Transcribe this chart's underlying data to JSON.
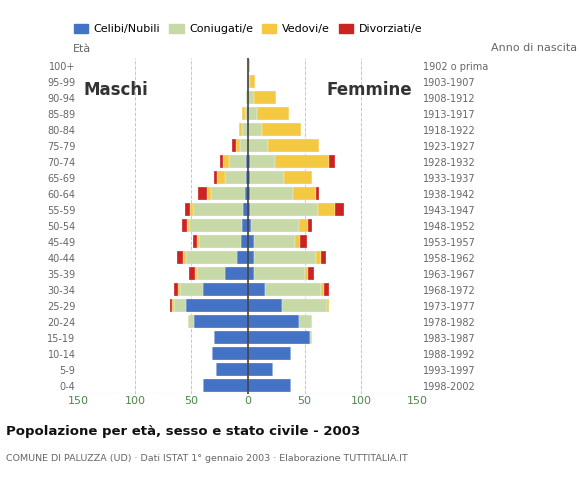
{
  "age_groups": [
    "0-4",
    "5-9",
    "10-14",
    "15-19",
    "20-24",
    "25-29",
    "30-34",
    "35-39",
    "40-44",
    "45-49",
    "50-54",
    "55-59",
    "60-64",
    "65-69",
    "70-74",
    "75-79",
    "80-84",
    "85-89",
    "90-94",
    "95-99",
    "100+"
  ],
  "birth_years": [
    "1998-2002",
    "1993-1997",
    "1988-1992",
    "1983-1987",
    "1978-1982",
    "1973-1977",
    "1968-1972",
    "1963-1967",
    "1958-1962",
    "1953-1957",
    "1948-1952",
    "1943-1947",
    "1938-1942",
    "1933-1937",
    "1928-1932",
    "1923-1927",
    "1918-1922",
    "1913-1917",
    "1908-1912",
    "1903-1907",
    "1902 o prima"
  ],
  "male_celibi": [
    40,
    28,
    32,
    30,
    48,
    55,
    40,
    20,
    10,
    6,
    5,
    4,
    3,
    2,
    2,
    0,
    0,
    0,
    0,
    0,
    0
  ],
  "male_coniugati": [
    0,
    0,
    0,
    0,
    5,
    10,
    20,
    25,
    45,
    37,
    47,
    45,
    30,
    18,
    15,
    7,
    5,
    3,
    2,
    0,
    0
  ],
  "male_vedovi": [
    0,
    0,
    0,
    0,
    0,
    2,
    2,
    2,
    2,
    2,
    2,
    2,
    3,
    7,
    5,
    4,
    3,
    2,
    0,
    0,
    0
  ],
  "male_divorziati": [
    0,
    0,
    0,
    0,
    0,
    2,
    3,
    5,
    6,
    4,
    4,
    5,
    8,
    3,
    3,
    3,
    0,
    0,
    0,
    0,
    0
  ],
  "female_nubili": [
    38,
    22,
    38,
    55,
    45,
    30,
    15,
    5,
    5,
    5,
    3,
    2,
    2,
    2,
    2,
    0,
    0,
    0,
    0,
    0,
    0
  ],
  "female_coniugate": [
    0,
    0,
    0,
    2,
    12,
    40,
    50,
    45,
    55,
    37,
    42,
    60,
    38,
    30,
    22,
    18,
    12,
    8,
    5,
    2,
    0
  ],
  "female_vedove": [
    0,
    0,
    0,
    0,
    0,
    2,
    2,
    3,
    5,
    4,
    8,
    15,
    20,
    25,
    48,
    45,
    35,
    28,
    20,
    4,
    2
  ],
  "female_divorziate": [
    0,
    0,
    0,
    0,
    0,
    0,
    5,
    5,
    4,
    6,
    4,
    8,
    3,
    0,
    5,
    0,
    0,
    0,
    0,
    0,
    0
  ],
  "color_celibi": "#4472C4",
  "color_coniugati": "#C8D9A8",
  "color_vedovi": "#F5C842",
  "color_divorziati": "#CC2222",
  "xlim": 150,
  "title": "Popolazione per età, sesso e stato civile - 2003",
  "subtitle": "COMUNE DI PALUZZA (UD) · Dati ISTAT 1° gennaio 2003 · Elaborazione TUTTITALIA.IT",
  "legend_labels": [
    "Celibi/Nubili",
    "Coniugati/e",
    "Vedovi/e",
    "Divorziati/e"
  ],
  "label_maschi": "Maschi",
  "label_femmine": "Femmine",
  "label_eta": "Età",
  "label_anno": "Anno di nascita",
  "bg_color": "#FFFFFF",
  "grid_color": "#C8C8C8",
  "tick_color": "#4A8A4A",
  "text_color": "#666666",
  "title_color": "#111111"
}
